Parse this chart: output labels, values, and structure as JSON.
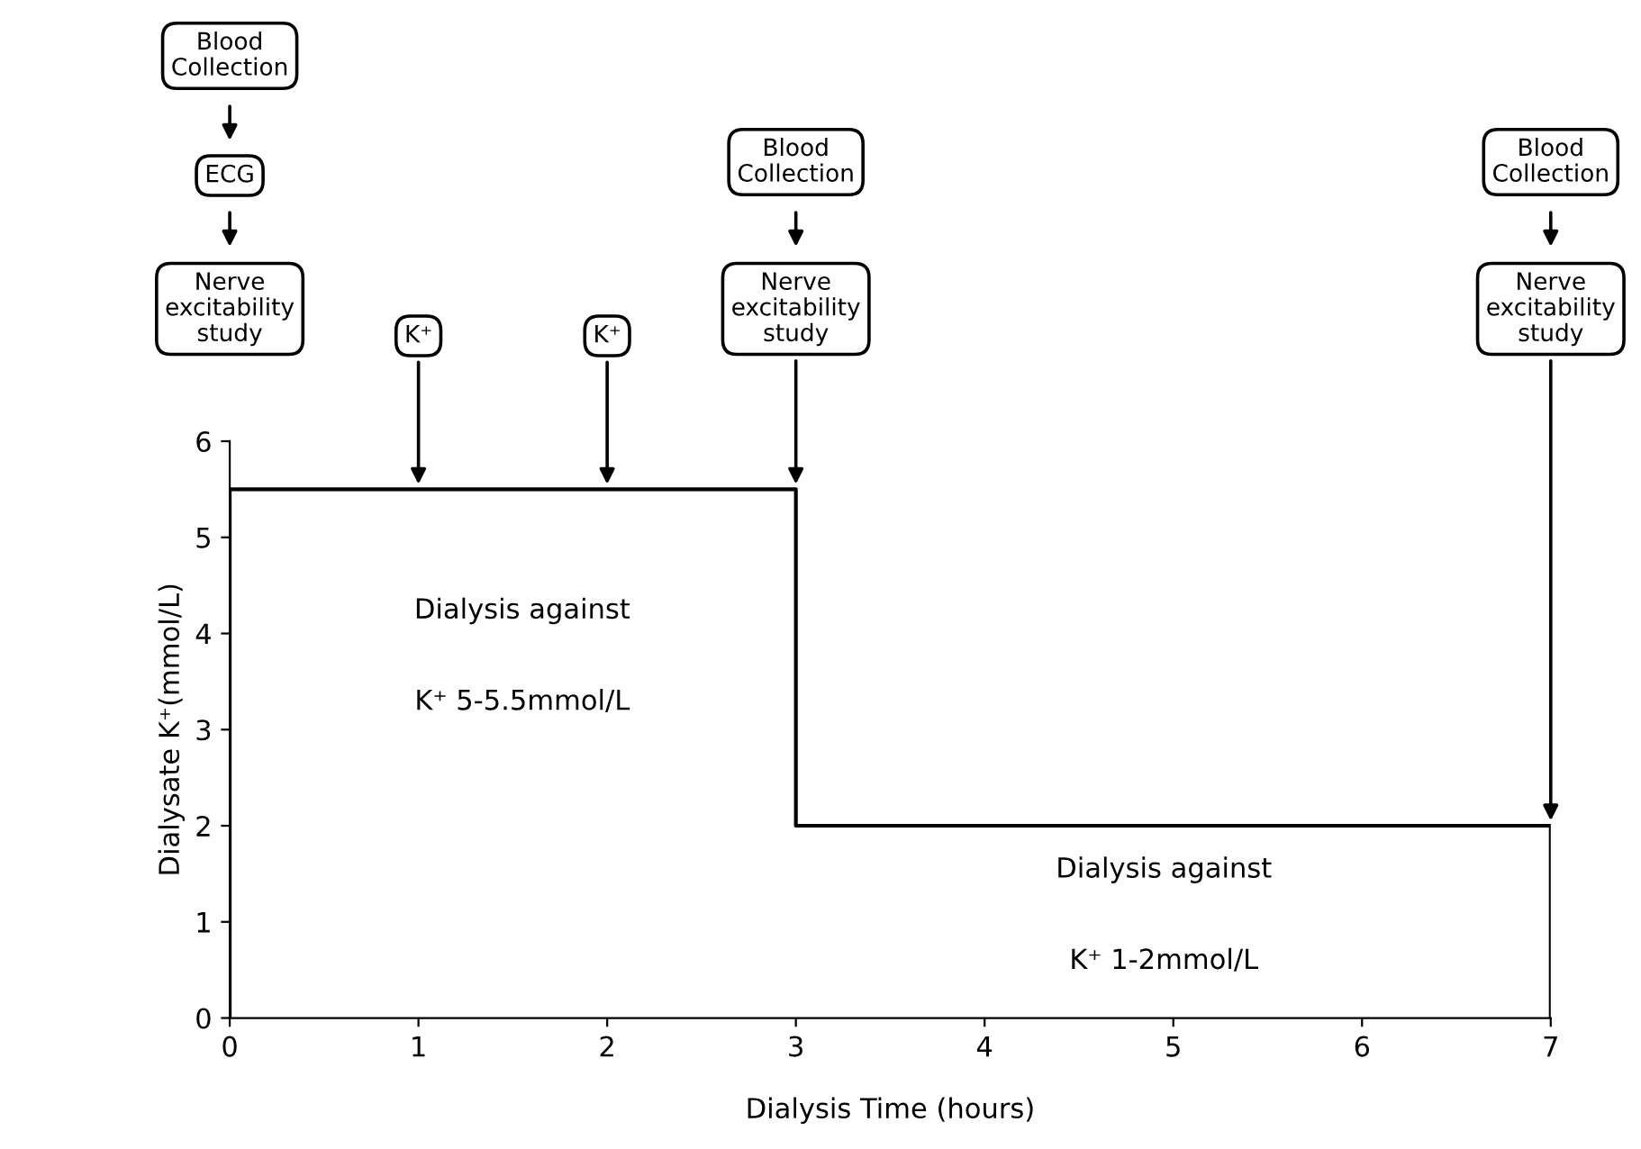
{
  "chart_data": {
    "type": "line",
    "xlabel": "Dialysis Time (hours)",
    "ylabel": "Dialysate K⁺(mmol/L)",
    "series": [
      {
        "color": "#000000",
        "x": [
          0,
          0,
          3,
          3,
          7,
          7
        ],
        "values": [
          0,
          5.5,
          5.5,
          2,
          2,
          0
        ]
      }
    ],
    "xlim": [
      0,
      7
    ],
    "ylim": [
      0,
      6
    ],
    "xticks": [
      0,
      1,
      2,
      3,
      4,
      5,
      6,
      7
    ],
    "yticks": [
      0,
      1,
      2,
      3,
      4,
      5,
      6
    ],
    "grid": false,
    "marker": "none",
    "line_style": "solid",
    "annotations": [
      "Blood\nCollection",
      "ECG",
      "Nerve\nexcitability\nstudy",
      {
        "text": "K⁺",
        "x": 1,
        "y": 5.5
      },
      {
        "text": "K⁺",
        "x": 2,
        "y": 5.5
      },
      "Blood\nCollection",
      {
        "text": "Nerve\nexcitability\nstudy",
        "x": 3,
        "y": 5.5
      },
      "Blood\nCollection",
      {
        "text": "Nerve\nexcitability\nstudy",
        "x": 7,
        "y": 2
      },
      "Dialysis against",
      "K⁺ 5-5.5mmol/L",
      "Dialysis against",
      "K⁺ 1-2mmol/L"
    ]
  }
}
